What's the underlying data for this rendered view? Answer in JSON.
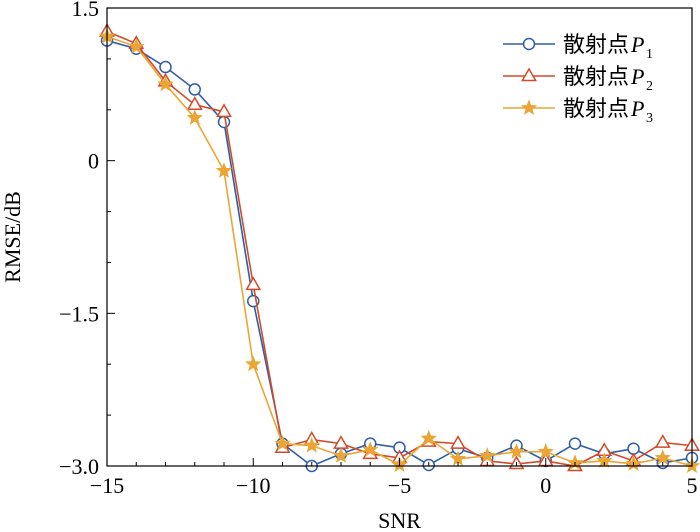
{
  "chart_data": {
    "type": "line",
    "xlabel": "SNR",
    "ylabel": "RMSE/dB",
    "xlim": [
      -15,
      5
    ],
    "ylim": [
      -3.0,
      1.5
    ],
    "xticks": [
      -15,
      -10,
      -5,
      0,
      5
    ],
    "xtick_labels": [
      "−15",
      "−10",
      "−5",
      "0",
      "5"
    ],
    "yticks": [
      -3.0,
      -1.5,
      0,
      1.5
    ],
    "ytick_labels": [
      "−3.0",
      "−1.5",
      "0",
      "1.5"
    ],
    "grid": false,
    "legend_position": "top-right",
    "x": [
      -15,
      -14,
      -13,
      -12,
      -11,
      -10,
      -9,
      -8,
      -7,
      -6,
      -5,
      -4,
      -3,
      -2,
      -1,
      0,
      1,
      2,
      3,
      4,
      5
    ],
    "series": [
      {
        "legend_text": "散射点",
        "legend_symbol": "P",
        "legend_subscript": "1",
        "color": "#2e5ea8",
        "marker": "circle",
        "values": [
          1.18,
          1.1,
          0.92,
          0.7,
          0.38,
          -1.38,
          -2.78,
          -3.0,
          -2.88,
          -2.78,
          -2.82,
          -2.99,
          -2.83,
          -2.92,
          -2.8,
          -2.95,
          -2.78,
          -2.88,
          -2.83,
          -2.97,
          -2.92
        ]
      },
      {
        "legend_text": "散射点",
        "legend_symbol": "P",
        "legend_subscript": "2",
        "color": "#d14b2a",
        "marker": "triangle",
        "values": [
          1.27,
          1.15,
          0.78,
          0.55,
          0.48,
          -1.22,
          -2.82,
          -2.74,
          -2.78,
          -2.88,
          -2.92,
          -2.76,
          -2.78,
          -2.95,
          -2.98,
          -2.95,
          -3.0,
          -2.85,
          -2.95,
          -2.77,
          -2.8
        ]
      },
      {
        "legend_text": "散射点",
        "legend_symbol": "P",
        "legend_subscript": "3",
        "color": "#eaa534",
        "marker": "star",
        "values": [
          1.22,
          1.12,
          0.75,
          0.42,
          -0.1,
          -2.0,
          -2.78,
          -2.8,
          -2.9,
          -2.84,
          -2.99,
          -2.73,
          -2.93,
          -2.9,
          -2.86,
          -2.86,
          -2.97,
          -2.95,
          -2.98,
          -2.92,
          -3.0
        ]
      }
    ]
  }
}
